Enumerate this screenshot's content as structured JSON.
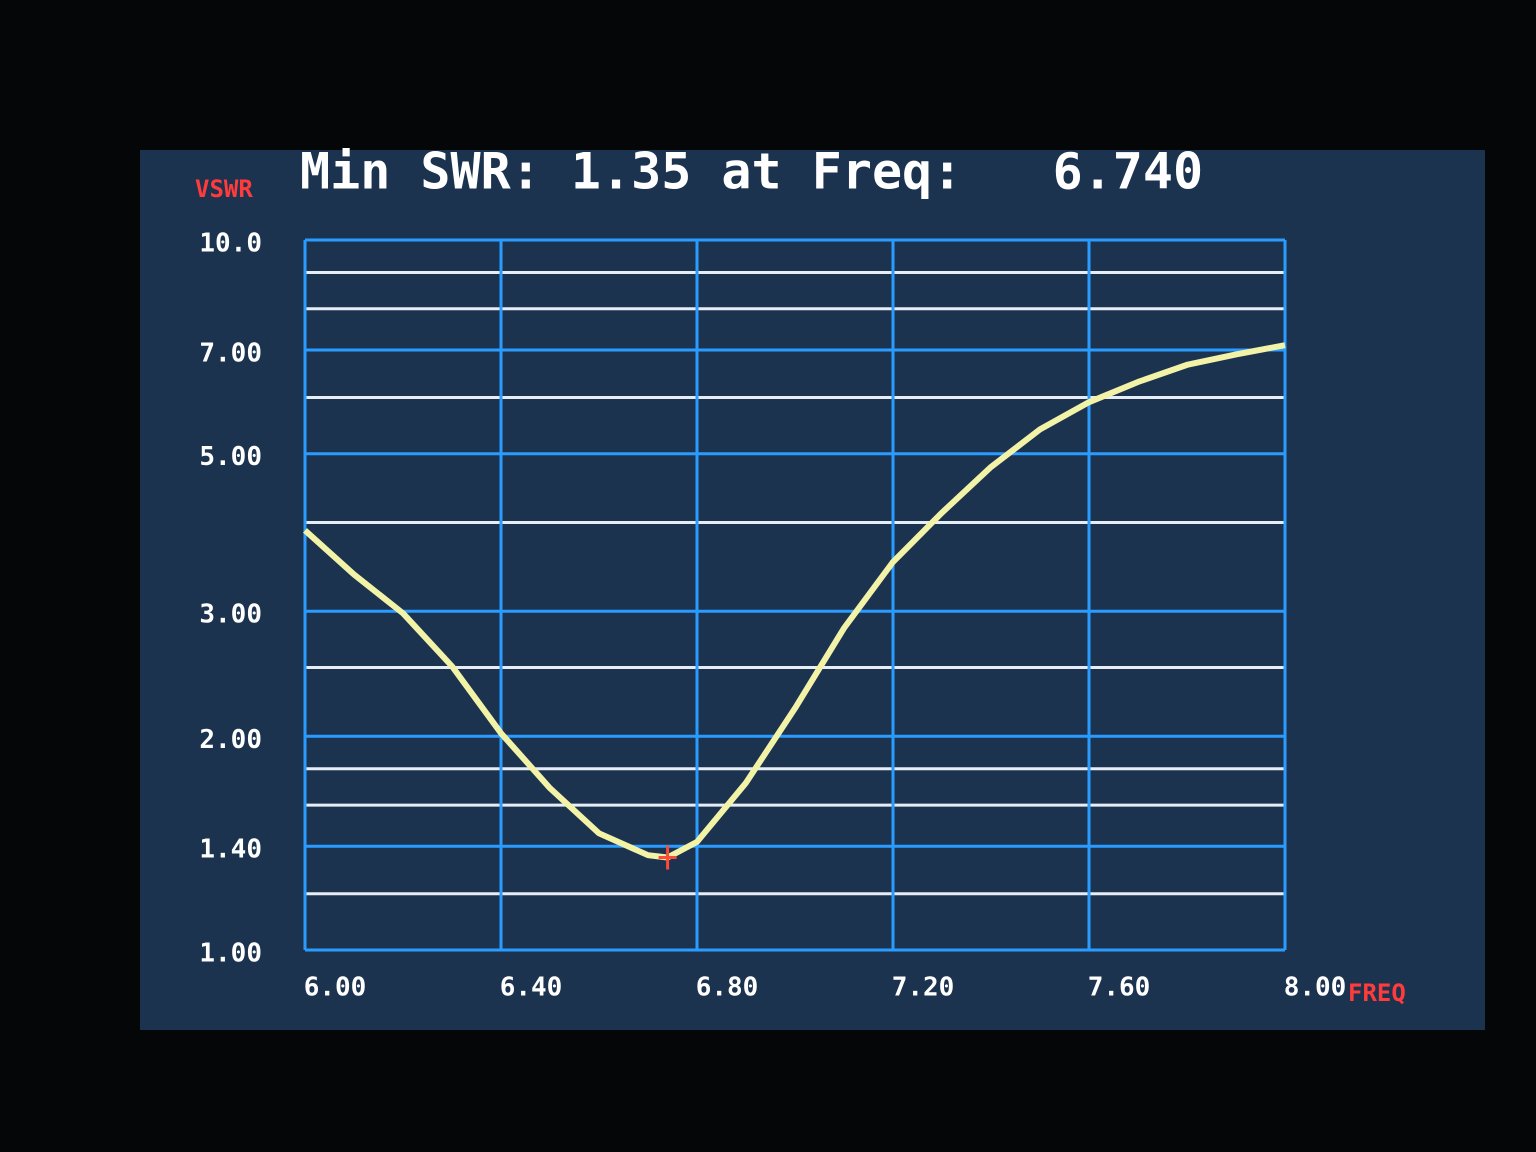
{
  "chart_data": {
    "type": "line",
    "title": "Min SWR: 1.35 at Freq:   6.740",
    "y_label": "VSWR",
    "x_label": "FREQ",
    "log_y": true,
    "grid": true,
    "xlim": [
      6,
      8
    ],
    "ylim": [
      1,
      10
    ],
    "xticks": [
      {
        "value": 6,
        "label": "6.00"
      },
      {
        "value": 6.4,
        "label": "6.40"
      },
      {
        "value": 6.8,
        "label": "6.80"
      },
      {
        "value": 7.2,
        "label": "7.20"
      },
      {
        "value": 7.6,
        "label": "7.60"
      },
      {
        "value": 8,
        "label": "8.00"
      }
    ],
    "yticks": [
      {
        "value": 1,
        "label": "1.00"
      },
      {
        "value": 1.4,
        "label": "1.40"
      },
      {
        "value": 2,
        "label": "2.00"
      },
      {
        "value": 3,
        "label": "3.00"
      },
      {
        "value": 5,
        "label": "5.00"
      },
      {
        "value": 7,
        "label": "7.00"
      },
      {
        "value": 10,
        "label": "10.0"
      }
    ],
    "y_minor_grid": [
      1.2,
      1.6,
      1.8,
      2.5,
      4,
      6,
      8,
      9
    ],
    "grid_color": "#2a9cff",
    "minor_grid_color": "#e6edf5",
    "x": [
      6.0,
      6.1,
      6.2,
      6.3,
      6.4,
      6.5,
      6.6,
      6.7,
      6.74,
      6.8,
      6.9,
      7.0,
      7.1,
      7.2,
      7.3,
      7.4,
      7.5,
      7.6,
      7.7,
      7.8,
      7.9,
      8.0
    ],
    "series": [
      {
        "name": "VSWR",
        "color": "#f3f3a8",
        "values": [
          3.9,
          3.38,
          2.98,
          2.51,
          2.02,
          1.69,
          1.46,
          1.36,
          1.35,
          1.42,
          1.72,
          2.19,
          2.84,
          3.52,
          4.13,
          4.79,
          5.41,
          5.91,
          6.31,
          6.67,
          6.9,
          7.11
        ]
      }
    ],
    "marker": {
      "x": 6.74,
      "y": 1.35,
      "color": "#ff4a3a"
    }
  }
}
